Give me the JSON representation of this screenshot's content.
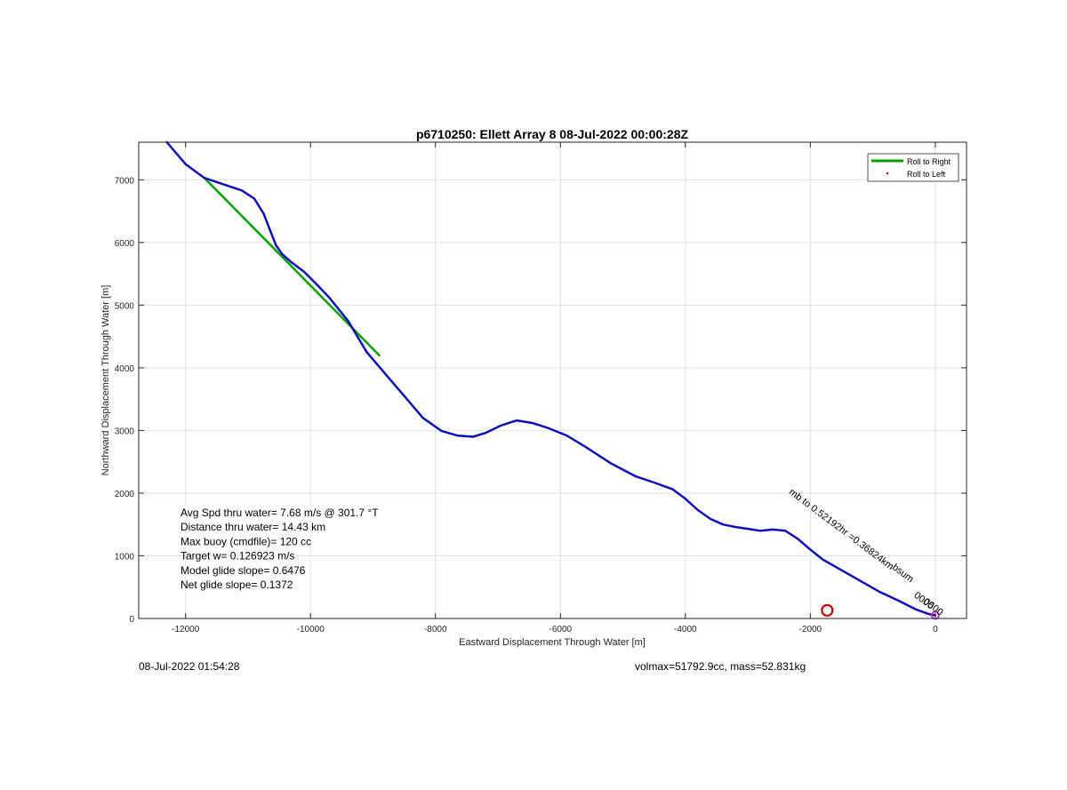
{
  "chart_data": {
    "type": "line",
    "title": "p6710250: Ellett Array 8 08-Jul-2022 00:00:28Z",
    "xlabel": "Eastward Displacement Through Water [m]",
    "ylabel": "Northward Displacement Through Water [m]",
    "xlim": [
      -12750,
      500
    ],
    "ylim": [
      0,
      7600
    ],
    "xticks": [
      -12000,
      -10000,
      -8000,
      -6000,
      -4000,
      -2000,
      0
    ],
    "yticks": [
      0,
      1000,
      2000,
      3000,
      4000,
      5000,
      6000,
      7000
    ],
    "grid": true,
    "legend": {
      "placement": "top-right",
      "entries": [
        "Roll to Right",
        "Roll to Left"
      ]
    },
    "series": [
      {
        "name": "track",
        "color": "#1010b8",
        "x": [
          -12300,
          -12000,
          -11700,
          -11400,
          -11100,
          -10900,
          -10750,
          -10650,
          -10550,
          -10450,
          -10300,
          -10100,
          -9900,
          -9700,
          -9400,
          -9100,
          -8800,
          -8500,
          -8200,
          -7900,
          -7650,
          -7400,
          -7200,
          -6950,
          -6700,
          -6450,
          -6200,
          -5900,
          -5600,
          -5200,
          -4800,
          -4500,
          -4200,
          -4000,
          -3800,
          -3600,
          -3400,
          -3200,
          -3000,
          -2800,
          -2600,
          -2400,
          -2200,
          -2000,
          -1800,
          -1500,
          -1200,
          -900,
          -600,
          -300,
          -100,
          0
        ],
        "y": [
          7600,
          7250,
          7030,
          6930,
          6830,
          6700,
          6460,
          6200,
          5950,
          5810,
          5680,
          5530,
          5330,
          5120,
          4750,
          4250,
          3900,
          3550,
          3200,
          2990,
          2920,
          2900,
          2960,
          3080,
          3160,
          3120,
          3040,
          2920,
          2740,
          2480,
          2270,
          2170,
          2060,
          1910,
          1730,
          1590,
          1500,
          1460,
          1430,
          1400,
          1420,
          1400,
          1270,
          1100,
          940,
          770,
          600,
          430,
          290,
          140,
          70,
          50
        ]
      },
      {
        "name": "Roll to Right",
        "color": "#00a000",
        "x": [
          -11700,
          -8900
        ],
        "y": [
          7030,
          4200
        ]
      }
    ],
    "markers": [
      {
        "x": -1730,
        "y": 130,
        "shape": "circle",
        "color": "#c80000"
      },
      {
        "x": 0,
        "y": 50,
        "shape": "circle",
        "color": "#c020c0"
      }
    ],
    "annotations": [
      "Avg Spd thru water=  7.68 m/s @ 301.7 °T",
      "Distance thru water= 14.43 km",
      "Max buoy (cmdfile)= 120 cc",
      "Target w= 0.126923 m/s",
      "Model glide slope= 0.6476",
      "Net glide slope= 0.1372"
    ],
    "rotated_labels": [
      {
        "text": "mb to 0.52192hr =0.36824km",
        "x": -2350,
        "y": 2000
      },
      {
        "text": "bsum",
        "x": -700,
        "y": 800
      },
      {
        "text": "0000",
        "x": -350,
        "y": 350
      },
      {
        "text": "0500",
        "x": -200,
        "y": 250
      }
    ]
  },
  "footer": {
    "left": "08-Jul-2022 01:54:28",
    "right": "volmax=51792.9cc, mass=52.831kg"
  }
}
